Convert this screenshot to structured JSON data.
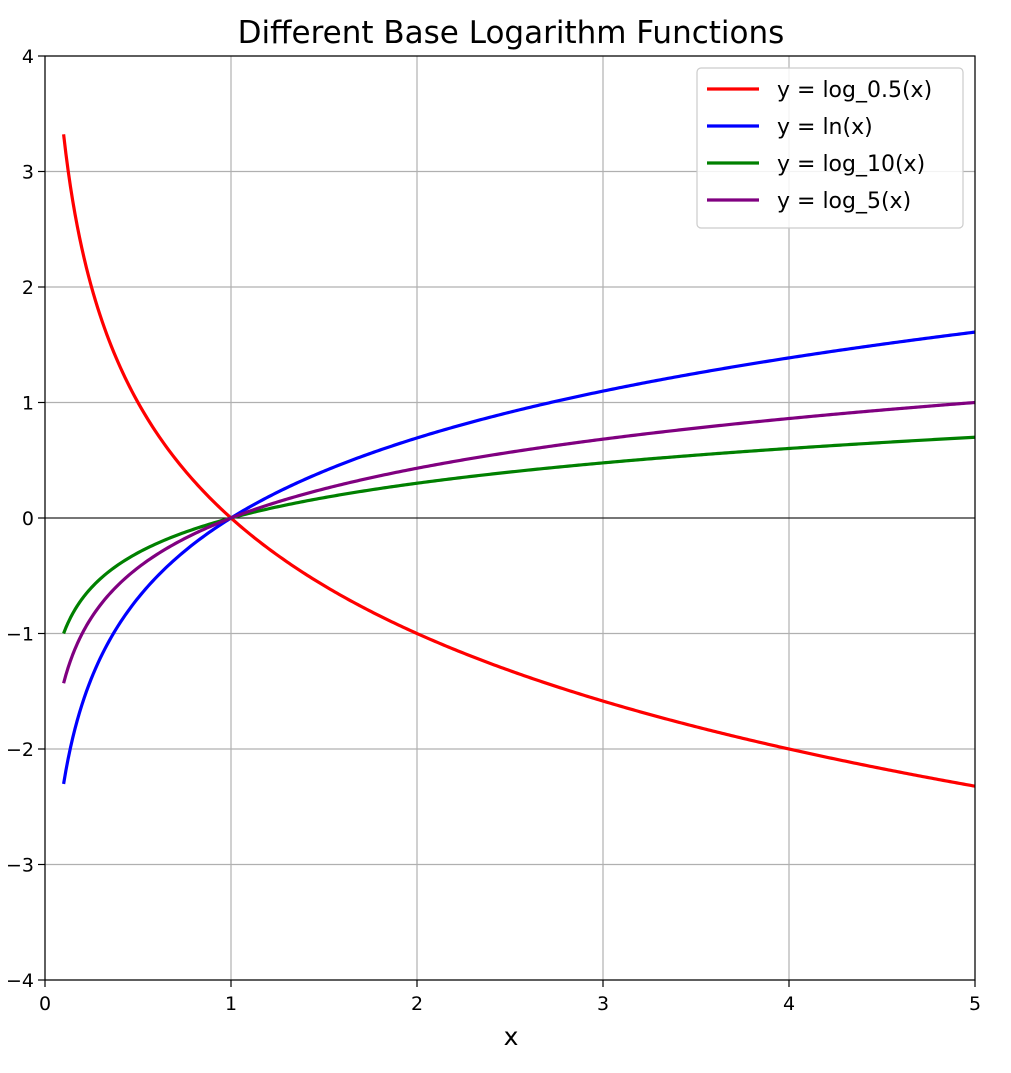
{
  "chart_data": {
    "type": "line",
    "title": "Different Base Logarithm Functions",
    "xlabel": "x",
    "ylabel": "",
    "xlim": [
      0,
      5
    ],
    "ylim": [
      -4,
      4
    ],
    "x_range": [
      0.1,
      5
    ],
    "xticks": [
      0,
      1,
      2,
      3,
      4,
      5
    ],
    "yticks": [
      -4,
      -3,
      -2,
      -1,
      0,
      1,
      2,
      3,
      4
    ],
    "xtick_labels": [
      "0",
      "1",
      "2",
      "3",
      "4",
      "5"
    ],
    "ytick_labels": [
      "−4",
      "−3",
      "−2",
      "−1",
      "0",
      "1",
      "2",
      "3",
      "4"
    ],
    "grid": true,
    "zero_line": true,
    "legend_position": "top-right",
    "series": [
      {
        "name": "y = log_0.5(x)",
        "base": 0.5,
        "color": "#ff0000"
      },
      {
        "name": "y = ln(x)",
        "base": 2.718281828459045,
        "color": "#0000ff"
      },
      {
        "name": "y = log_10(x)",
        "base": 10,
        "color": "#008000"
      },
      {
        "name": "y = log_5(x)",
        "base": 5,
        "color": "#800080"
      }
    ]
  }
}
